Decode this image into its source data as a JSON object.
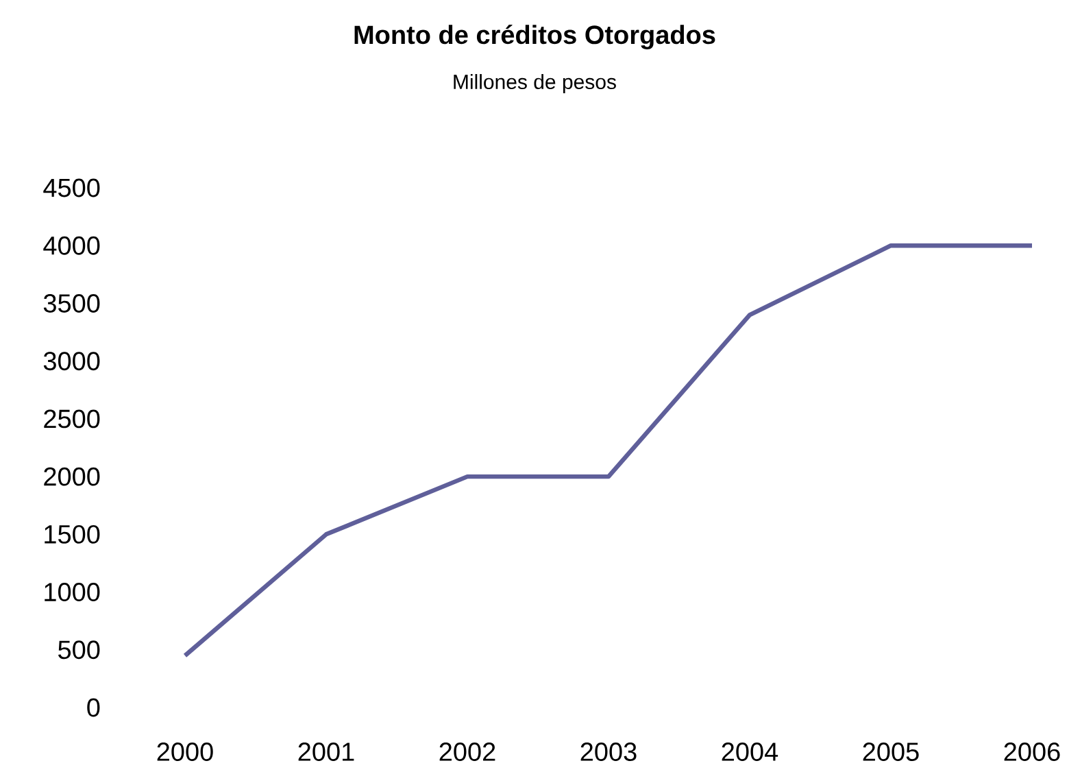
{
  "chart_data": {
    "type": "line",
    "title": "Monto de créditos Otorgados",
    "subtitle": "Millones de pesos",
    "categories": [
      "2000",
      "2001",
      "2002",
      "2003",
      "2004",
      "2005",
      "2006"
    ],
    "values": [
      450,
      1500,
      2000,
      2000,
      3400,
      4000,
      4000
    ],
    "color": "#5f5f9a",
    "ylim": [
      0,
      4500
    ],
    "yticks": [
      0,
      500,
      1000,
      1500,
      2000,
      2500,
      3000,
      3500,
      4000,
      4500
    ],
    "grid": false,
    "marker": "none",
    "line_style": "solid"
  }
}
